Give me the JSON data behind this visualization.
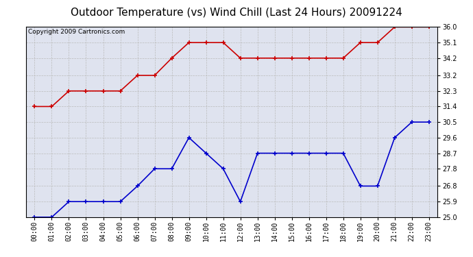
{
  "title": "Outdoor Temperature (vs) Wind Chill (Last 24 Hours) 20091224",
  "copyright": "Copyright 2009 Cartronics.com",
  "x_labels": [
    "00:00",
    "01:00",
    "02:00",
    "03:00",
    "04:00",
    "05:00",
    "06:00",
    "07:00",
    "08:00",
    "09:00",
    "10:00",
    "11:00",
    "12:00",
    "13:00",
    "14:00",
    "15:00",
    "16:00",
    "17:00",
    "18:00",
    "19:00",
    "20:00",
    "21:00",
    "22:00",
    "23:00"
  ],
  "temp_red": [
    31.4,
    31.4,
    32.3,
    32.3,
    32.3,
    32.3,
    33.2,
    33.2,
    34.2,
    35.1,
    35.1,
    35.1,
    34.2,
    34.2,
    34.2,
    34.2,
    34.2,
    34.2,
    34.2,
    35.1,
    35.1,
    36.0,
    36.0,
    36.0
  ],
  "wind_blue": [
    25.0,
    25.0,
    25.9,
    25.9,
    25.9,
    25.9,
    26.8,
    27.8,
    27.8,
    29.6,
    28.7,
    27.8,
    25.9,
    28.7,
    28.7,
    28.7,
    28.7,
    28.7,
    28.7,
    26.8,
    26.8,
    29.6,
    30.5,
    30.5
  ],
  "ylim_min": 25.0,
  "ylim_max": 36.0,
  "yticks": [
    25.0,
    25.9,
    26.8,
    27.8,
    28.7,
    29.6,
    30.5,
    31.4,
    32.3,
    33.2,
    34.2,
    35.1,
    36.0
  ],
  "red_color": "#cc0000",
  "blue_color": "#0000cc",
  "grid_color": "#bbbbbb",
  "bg_color": "#dfe3ef",
  "fig_bg_color": "#ffffff",
  "title_fontsize": 11,
  "copyright_fontsize": 6.5,
  "tick_fontsize": 7,
  "line_width": 1.2,
  "marker_size": 4
}
